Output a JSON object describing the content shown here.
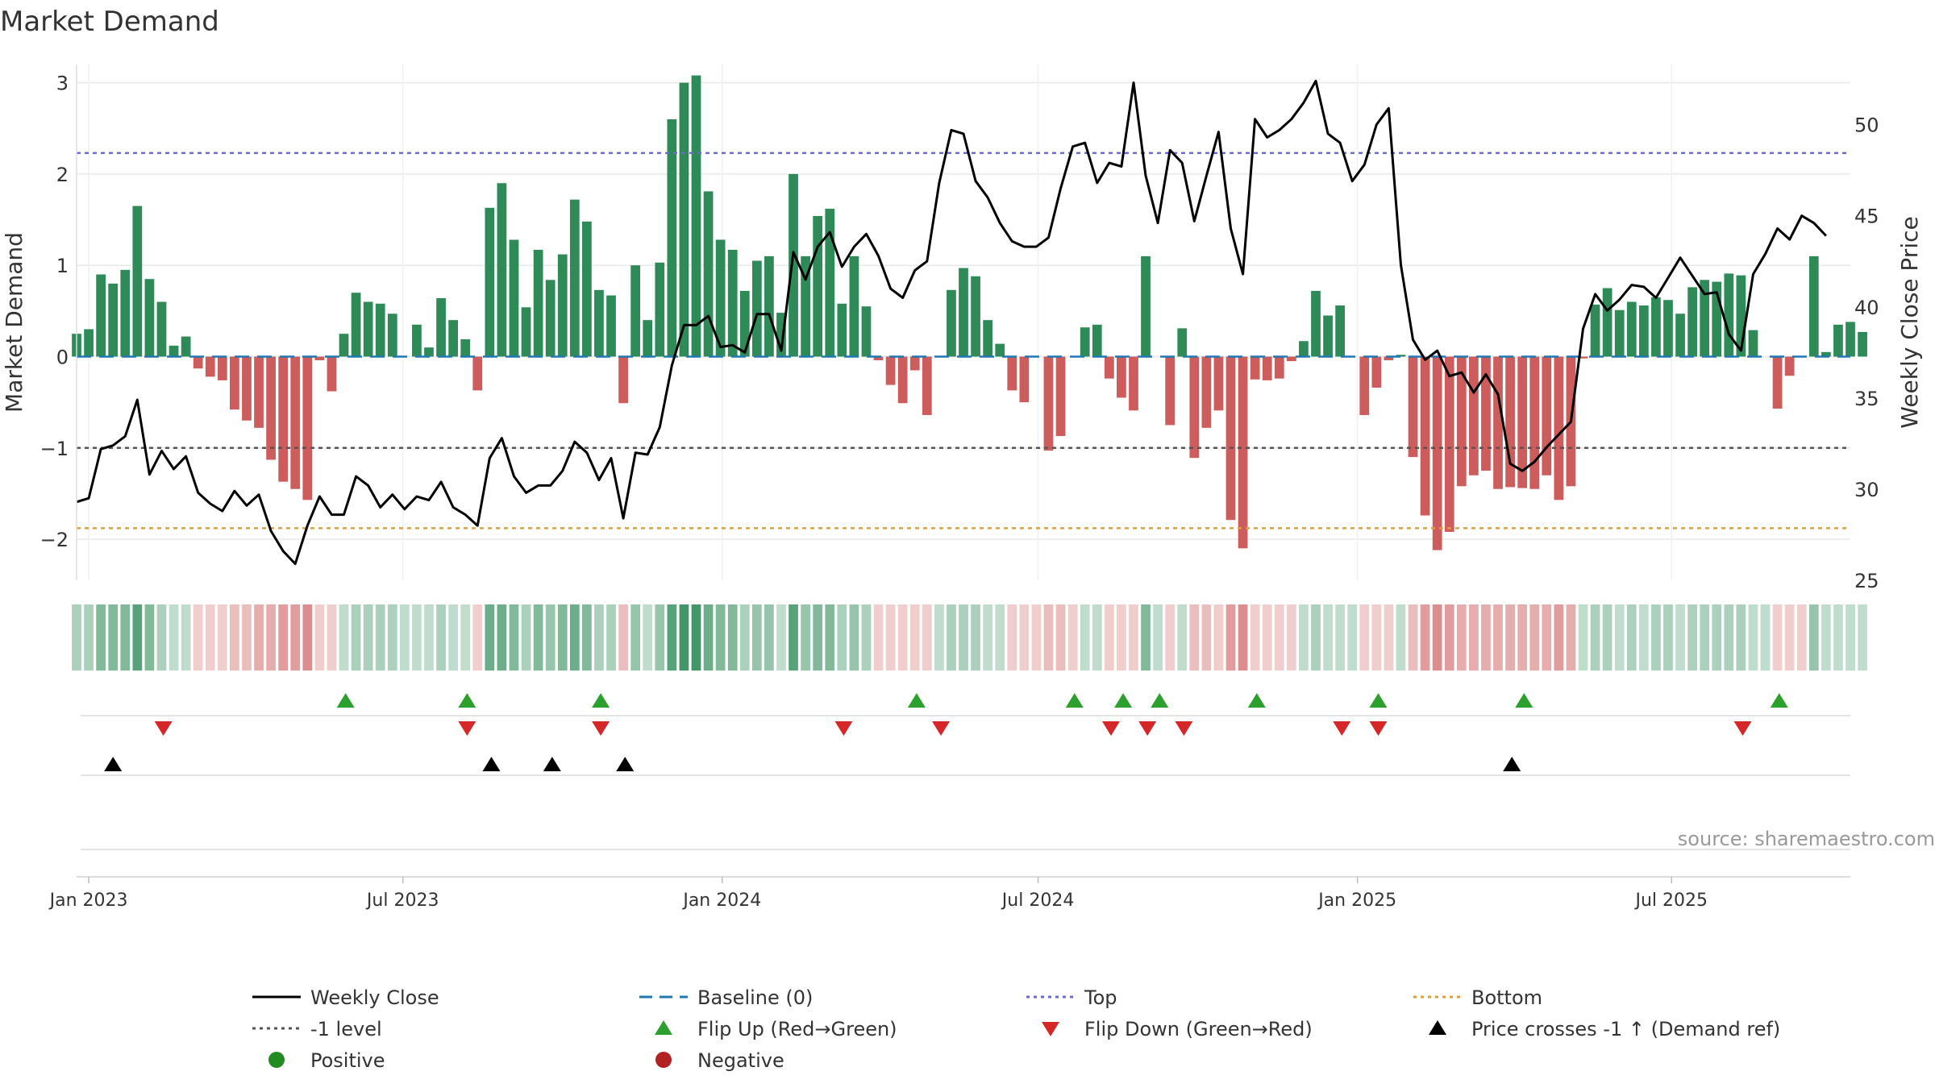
{
  "chart_data": {
    "type": "bar",
    "title": "Market Demand",
    "xlabel": "",
    "ylabel": "Market Demand",
    "y2label": "Weekly Close Price",
    "ylim": [
      -2.45,
      3.2
    ],
    "y2lim": [
      25,
      53.3
    ],
    "yticks": [
      -2,
      -1,
      0,
      1,
      2,
      3
    ],
    "y2ticks": [
      25,
      30,
      35,
      40,
      45,
      50
    ],
    "x_start": "2022-12-25",
    "x_end": "2025-10-12",
    "xticks": [
      {
        "date": "2023-01-01",
        "label": "Jan 2023"
      },
      {
        "date": "2023-07-01",
        "label": "Jul 2023"
      },
      {
        "date": "2024-01-01",
        "label": "Jan 2024"
      },
      {
        "date": "2024-07-01",
        "label": "Jul 2024"
      },
      {
        "date": "2025-01-01",
        "label": "Jan 2025"
      },
      {
        "date": "2025-07-01",
        "label": "Jul 2025"
      }
    ],
    "first_week": "2022-12-25",
    "week_step_days": 7,
    "demand": [
      0.25,
      0.3,
      0.9,
      0.8,
      0.95,
      1.65,
      0.85,
      0.6,
      0.12,
      0.22,
      -0.13,
      -0.22,
      -0.26,
      -0.58,
      -0.7,
      -0.78,
      -1.13,
      -1.37,
      -1.45,
      -1.57,
      -0.04,
      -0.38,
      0.25,
      0.7,
      0.6,
      0.58,
      0.47,
      0.0,
      0.35,
      0.1,
      0.64,
      0.4,
      0.19,
      -0.37,
      1.63,
      1.9,
      1.28,
      0.54,
      1.17,
      0.84,
      1.12,
      1.72,
      1.48,
      0.73,
      0.67,
      -0.51,
      1.0,
      0.4,
      1.03,
      2.6,
      3.0,
      3.08,
      1.81,
      1.28,
      1.17,
      0.72,
      1.05,
      1.1,
      0.48,
      2.0,
      1.1,
      1.54,
      1.62,
      0.58,
      1.1,
      0.55,
      -0.04,
      -0.31,
      -0.51,
      -0.15,
      -0.64,
      0.0,
      0.73,
      0.97,
      0.88,
      0.4,
      0.14,
      -0.37,
      -0.5,
      0.0,
      -1.03,
      -0.87,
      0.0,
      0.32,
      0.35,
      -0.24,
      -0.45,
      -0.59,
      1.1,
      0.0,
      -0.75,
      0.31,
      -1.11,
      -0.78,
      -0.59,
      -1.79,
      -2.1,
      -0.25,
      -0.26,
      -0.24,
      -0.05,
      0.17,
      0.72,
      0.45,
      0.56,
      0.0,
      -0.64,
      -0.34,
      -0.04,
      0.02,
      -1.1,
      -1.74,
      -2.12,
      -1.92,
      -1.42,
      -1.3,
      -1.25,
      -1.45,
      -1.43,
      -1.44,
      -1.45,
      -1.3,
      -1.57,
      -1.42,
      -0.02,
      0.57,
      0.75,
      0.51,
      0.6,
      0.56,
      0.65,
      0.62,
      0.47,
      0.76,
      0.84,
      0.82,
      0.91,
      0.89,
      0.29,
      0.0,
      -0.57,
      -0.21,
      0.0,
      1.1,
      0.05,
      0.35,
      0.38,
      0.27
    ],
    "price": [
      29.3,
      29.5,
      32.2,
      32.4,
      32.9,
      34.9,
      30.8,
      32.1,
      31.1,
      31.8,
      29.8,
      29.2,
      28.8,
      29.9,
      29.1,
      29.7,
      27.7,
      26.6,
      25.9,
      28.0,
      29.6,
      28.6,
      28.6,
      30.7,
      30.2,
      29.0,
      29.7,
      28.9,
      29.6,
      29.4,
      30.4,
      29.0,
      28.6,
      28.0,
      31.7,
      32.8,
      30.7,
      29.8,
      30.2,
      30.2,
      31.0,
      32.6,
      32.0,
      30.5,
      31.7,
      28.4,
      32.0,
      31.9,
      33.4,
      36.8,
      39.0,
      39.0,
      39.5,
      37.8,
      37.9,
      37.5,
      39.6,
      39.6,
      37.6,
      43.0,
      41.5,
      43.3,
      44.1,
      42.2,
      43.3,
      44.0,
      42.8,
      41.0,
      40.5,
      42.0,
      42.5,
      46.8,
      49.7,
      49.5,
      46.9,
      46.0,
      44.6,
      43.6,
      43.3,
      43.3,
      43.8,
      46.5,
      48.8,
      49.0,
      46.8,
      47.9,
      47.7,
      52.3,
      47.2,
      44.6,
      48.6,
      47.9,
      44.7,
      47.2,
      49.6,
      44.3,
      41.8,
      50.3,
      49.3,
      49.7,
      50.3,
      51.2,
      52.4,
      49.5,
      49.0,
      46.9,
      47.8,
      50.0,
      50.9,
      42.3,
      38.2,
      37.1,
      37.6,
      36.2,
      36.4,
      35.3,
      36.3,
      35.2,
      31.4,
      31.0,
      31.5,
      32.3,
      33.0,
      33.7,
      38.8,
      40.7,
      39.8,
      40.4,
      41.2,
      41.1,
      40.5,
      41.6,
      42.7,
      41.7,
      40.7,
      40.8,
      38.5,
      37.6,
      41.8,
      42.9,
      44.3,
      43.7,
      45.0,
      44.6,
      43.9
    ],
    "strip_cells": [
      0.4,
      0.4,
      0.6,
      0.6,
      0.6,
      0.8,
      0.6,
      0.4,
      0.3,
      0.3,
      -0.3,
      -0.3,
      -0.3,
      -0.4,
      -0.4,
      -0.5,
      -0.5,
      -0.6,
      -0.6,
      -0.7,
      -0.3,
      -0.3,
      0.3,
      0.4,
      0.4,
      0.4,
      0.4,
      0.3,
      0.3,
      0.3,
      0.4,
      0.3,
      0.3,
      -0.3,
      0.7,
      0.7,
      0.6,
      0.4,
      0.6,
      0.5,
      0.6,
      0.7,
      0.6,
      0.4,
      0.4,
      -0.4,
      0.5,
      0.3,
      0.5,
      0.8,
      0.9,
      0.9,
      0.7,
      0.6,
      0.6,
      0.4,
      0.5,
      0.5,
      0.3,
      0.8,
      0.5,
      0.6,
      0.6,
      0.4,
      0.5,
      0.4,
      -0.3,
      -0.3,
      -0.3,
      -0.3,
      -0.3,
      0.3,
      0.4,
      0.4,
      0.4,
      0.3,
      0.3,
      -0.3,
      -0.3,
      -0.3,
      -0.4,
      -0.4,
      -0.3,
      0.3,
      0.3,
      -0.3,
      -0.3,
      -0.3,
      0.6,
      0.3,
      -0.3,
      0.3,
      -0.4,
      -0.4,
      -0.3,
      -0.6,
      -0.7,
      -0.3,
      -0.3,
      -0.3,
      -0.3,
      0.3,
      0.4,
      0.3,
      0.3,
      0.3,
      -0.3,
      -0.3,
      -0.3,
      0.3,
      -0.4,
      -0.6,
      -0.7,
      -0.6,
      -0.5,
      -0.5,
      -0.5,
      -0.5,
      -0.5,
      -0.5,
      -0.5,
      -0.5,
      -0.6,
      -0.5,
      0.3,
      0.4,
      0.4,
      0.3,
      0.4,
      0.3,
      0.4,
      0.4,
      0.3,
      0.4,
      0.4,
      0.4,
      0.4,
      0.4,
      0.3,
      0.3,
      -0.3,
      -0.3,
      -0.3,
      0.5,
      0.3,
      0.3,
      0.3,
      0.3
    ],
    "reference_lines": [
      {
        "name": "Baseline (0)",
        "value": 0,
        "color": "#1f77b4",
        "axis": "demand"
      },
      {
        "name": "Top",
        "value": 2.23,
        "color": "#6a6ad6",
        "axis": "demand"
      },
      {
        "name": "Bottom",
        "value": -1.88,
        "color": "#e0a030",
        "axis": "demand"
      },
      {
        "name": "-1 level",
        "value": -1,
        "color": "#555555",
        "axis": "demand"
      }
    ],
    "flip_up_dates": [
      "2023-05-29",
      "2023-08-07",
      "2023-10-23",
      "2024-04-22",
      "2024-07-22",
      "2024-08-19",
      "2024-09-09",
      "2024-11-04",
      "2025-01-13",
      "2025-04-07",
      "2025-09-01"
    ],
    "flip_down_dates": [
      "2023-02-13",
      "2023-08-07",
      "2023-10-23",
      "2024-03-11",
      "2024-05-06",
      "2024-08-12",
      "2024-09-02",
      "2024-09-23",
      "2024-12-23",
      "2025-01-13",
      "2025-08-11"
    ],
    "price_cross_dates": [
      "2023-01-15",
      "2023-08-21",
      "2023-09-25",
      "2023-11-06",
      "2025-03-31"
    ],
    "source": "source: sharemaestro.com",
    "legend": [
      {
        "label": "Weekly Close",
        "kind": "line",
        "color": "#000000"
      },
      {
        "label": "Baseline (0)",
        "kind": "dash",
        "color": "#1f77b4"
      },
      {
        "label": "Top",
        "kind": "dot",
        "color": "#6a6ad6"
      },
      {
        "label": "Bottom",
        "kind": "dot",
        "color": "#e0a030"
      },
      {
        "label": "-1 level",
        "kind": "dot",
        "color": "#555555"
      },
      {
        "label": "Flip Up (Red→Green)",
        "kind": "tri-up",
        "color": "#2ca02c"
      },
      {
        "label": "Flip Down (Green→Red)",
        "kind": "tri-down",
        "color": "#d62728"
      },
      {
        "label": "Price crosses -1 ↑ (Demand ref)",
        "kind": "tri-up",
        "color": "#000000"
      },
      {
        "label": "Positive",
        "kind": "circle",
        "color": "#228b22"
      },
      {
        "label": "Negative",
        "kind": "circle",
        "color": "#b22222"
      }
    ],
    "colors": {
      "positive": "#2e8b57",
      "negative": "#cd5c5c",
      "price": "#000000",
      "grid": "#e8e8e8"
    }
  }
}
